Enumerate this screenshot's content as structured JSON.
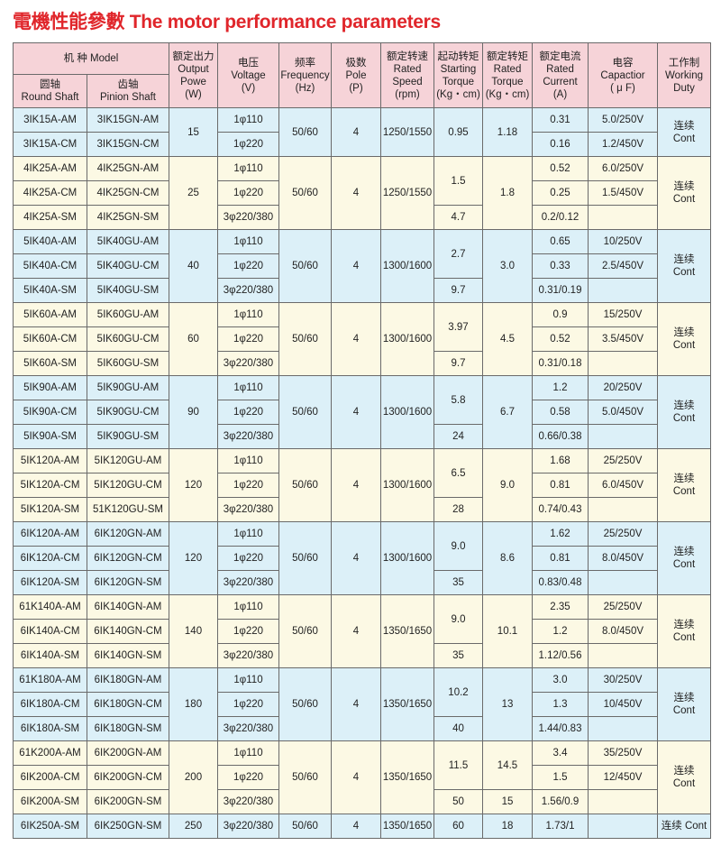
{
  "title": "電機性能參數 The motor performance parameters",
  "header": {
    "model": "机  种 Model",
    "round_shaft": [
      "圆轴",
      "Round Shaft"
    ],
    "pinion_shaft": [
      "齿轴",
      "Pinion Shaft"
    ],
    "output": [
      "额定出力",
      "Output",
      "Powe",
      "(W)"
    ],
    "voltage": [
      "电压",
      "Voltage",
      "(V)"
    ],
    "frequency": [
      "频率",
      "Frequency",
      "(Hz)"
    ],
    "pole": [
      "极数",
      "Pole",
      "(P)"
    ],
    "speed": [
      "额定转速",
      "Rated",
      "Speed",
      "(rpm)"
    ],
    "starting_torque": [
      "起动转矩",
      "Starting",
      "Torque",
      "(Kg・cm)"
    ],
    "rated_torque": [
      "额定转矩",
      "Rated",
      "Torque",
      "(Kg・cm)"
    ],
    "current": [
      "额定电流",
      "Rated",
      "Current",
      "(A)"
    ],
    "capacitor": [
      "电容",
      "Capactior",
      "( μ F)"
    ],
    "duty": [
      "工作制",
      "Working",
      "Duty"
    ]
  },
  "colors": {
    "header": "#f6d3d8",
    "blue": "#dcf0f8",
    "yellow": "#fcf9e4",
    "title": "#e0262b"
  },
  "groups": [
    {
      "bg": "blue",
      "power": "15",
      "freq": "50/60",
      "pole": "4",
      "speed": "1250/1550",
      "duty": [
        "连续",
        "Cont"
      ],
      "rows": [
        {
          "round": "3IK15A-AM",
          "pinion": "3IK15GN-AM",
          "voltage": "1φ110",
          "current": "0.31",
          "capacitor": "5.0/250V"
        },
        {
          "round": "3IK15A-CM",
          "pinion": "3IK15GN-CM",
          "voltage": "1φ220",
          "current": "0.16",
          "capacitor": "1.2/450V"
        }
      ],
      "starting_torque": [
        {
          "value": "0.95",
          "rows": 2
        }
      ],
      "rated_torque": [
        {
          "value": "1.18",
          "rows": 2
        }
      ]
    },
    {
      "bg": "yellow",
      "power": "25",
      "freq": "50/60",
      "pole": "4",
      "speed": "1250/1550",
      "duty": [
        "连续",
        "Cont"
      ],
      "rows": [
        {
          "round": "4IK25A-AM",
          "pinion": "4IK25GN-AM",
          "voltage": "1φ110",
          "current": "0.52",
          "capacitor": "6.0/250V"
        },
        {
          "round": "4IK25A-CM",
          "pinion": "4IK25GN-CM",
          "voltage": "1φ220",
          "current": "0.25",
          "capacitor": "1.5/450V"
        },
        {
          "round": "4IK25A-SM",
          "pinion": "4IK25GN-SM",
          "voltage": "3φ220/380",
          "current": "0.2/0.12",
          "capacitor": ""
        }
      ],
      "starting_torque": [
        {
          "value": "1.5",
          "rows": 2
        },
        {
          "value": "4.7",
          "rows": 1
        }
      ],
      "rated_torque": [
        {
          "value": "1.8",
          "rows": 3
        }
      ]
    },
    {
      "bg": "blue",
      "power": "40",
      "freq": "50/60",
      "pole": "4",
      "speed": "1300/1600",
      "duty": [
        "连续",
        "Cont"
      ],
      "rows": [
        {
          "round": "5IK40A-AM",
          "pinion": "5IK40GU-AM",
          "voltage": "1φ110",
          "current": "0.65",
          "capacitor": "10/250V"
        },
        {
          "round": "5IK40A-CM",
          "pinion": "5IK40GU-CM",
          "voltage": "1φ220",
          "current": "0.33",
          "capacitor": "2.5/450V"
        },
        {
          "round": "5IK40A-SM",
          "pinion": "5IK40GU-SM",
          "voltage": "3φ220/380",
          "current": "0.31/0.19",
          "capacitor": ""
        }
      ],
      "starting_torque": [
        {
          "value": "2.7",
          "rows": 2
        },
        {
          "value": "9.7",
          "rows": 1
        }
      ],
      "rated_torque": [
        {
          "value": "3.0",
          "rows": 3
        }
      ]
    },
    {
      "bg": "yellow",
      "power": "60",
      "freq": "50/60",
      "pole": "4",
      "speed": "1300/1600",
      "duty": [
        "连续",
        "Cont"
      ],
      "rows": [
        {
          "round": "5IK60A-AM",
          "pinion": "5IK60GU-AM",
          "voltage": "1φ110",
          "current": "0.9",
          "capacitor": "15/250V"
        },
        {
          "round": "5IK60A-CM",
          "pinion": "5IK60GU-CM",
          "voltage": "1φ220",
          "current": "0.52",
          "capacitor": "3.5/450V"
        },
        {
          "round": "5IK60A-SM",
          "pinion": "5IK60GU-SM",
          "voltage": "3φ220/380",
          "current": "0.31/0.18",
          "capacitor": ""
        }
      ],
      "starting_torque": [
        {
          "value": "3.97",
          "rows": 2
        },
        {
          "value": "9.7",
          "rows": 1
        }
      ],
      "rated_torque": [
        {
          "value": "4.5",
          "rows": 3
        }
      ]
    },
    {
      "bg": "blue",
      "power": "90",
      "freq": "50/60",
      "pole": "4",
      "speed": "1300/1600",
      "duty": [
        "连续",
        "Cont"
      ],
      "rows": [
        {
          "round": "5IK90A-AM",
          "pinion": "5IK90GU-AM",
          "voltage": "1φ110",
          "current": "1.2",
          "capacitor": "20/250V"
        },
        {
          "round": "5IK90A-CM",
          "pinion": "5IK90GU-CM",
          "voltage": "1φ220",
          "current": "0.58",
          "capacitor": "5.0/450V"
        },
        {
          "round": "5IK90A-SM",
          "pinion": "5IK90GU-SM",
          "voltage": "3φ220/380",
          "current": "0.66/0.38",
          "capacitor": ""
        }
      ],
      "starting_torque": [
        {
          "value": "5.8",
          "rows": 2
        },
        {
          "value": "24",
          "rows": 1
        }
      ],
      "rated_torque": [
        {
          "value": "6.7",
          "rows": 3
        }
      ]
    },
    {
      "bg": "yellow",
      "power": "120",
      "freq": "50/60",
      "pole": "4",
      "speed": "1300/1600",
      "duty": [
        "连续",
        "Cont"
      ],
      "rows": [
        {
          "round": "5IK120A-AM",
          "pinion": "5IK120GU-AM",
          "voltage": "1φ110",
          "current": "1.68",
          "capacitor": "25/250V"
        },
        {
          "round": "5IK120A-CM",
          "pinion": "5IK120GU-CM",
          "voltage": "1φ220",
          "current": "0.81",
          "capacitor": "6.0/450V"
        },
        {
          "round": "5IK120A-SM",
          "pinion": "51K120GU-SM",
          "voltage": "3φ220/380",
          "current": "0.74/0.43",
          "capacitor": ""
        }
      ],
      "starting_torque": [
        {
          "value": "6.5",
          "rows": 2
        },
        {
          "value": "28",
          "rows": 1
        }
      ],
      "rated_torque": [
        {
          "value": "9.0",
          "rows": 3
        }
      ]
    },
    {
      "bg": "blue",
      "power": "120",
      "freq": "50/60",
      "pole": "4",
      "speed": "1300/1600",
      "duty": [
        "连续",
        "Cont"
      ],
      "rows": [
        {
          "round": "6IK120A-AM",
          "pinion": "6IK120GN-AM",
          "voltage": "1φ110",
          "current": "1.62",
          "capacitor": "25/250V"
        },
        {
          "round": "6IK120A-CM",
          "pinion": "6IK120GN-CM",
          "voltage": "1φ220",
          "current": "0.81",
          "capacitor": "8.0/450V"
        },
        {
          "round": "6IK120A-SM",
          "pinion": "6IK120GN-SM",
          "voltage": "3φ220/380",
          "current": "0.83/0.48",
          "capacitor": ""
        }
      ],
      "starting_torque": [
        {
          "value": "9.0",
          "rows": 2
        },
        {
          "value": "35",
          "rows": 1
        }
      ],
      "rated_torque": [
        {
          "value": "8.6",
          "rows": 3
        }
      ]
    },
    {
      "bg": "yellow",
      "power": "140",
      "freq": "50/60",
      "pole": "4",
      "speed": "1350/1650",
      "duty": [
        "连续",
        "Cont"
      ],
      "rows": [
        {
          "round": "61K140A-AM",
          "pinion": "6IK140GN-AM",
          "voltage": "1φ110",
          "current": "2.35",
          "capacitor": "25/250V"
        },
        {
          "round": "6IK140A-CM",
          "pinion": "6IK140GN-CM",
          "voltage": "1φ220",
          "current": "1.2",
          "capacitor": "8.0/450V"
        },
        {
          "round": "6IK140A-SM",
          "pinion": "6IK140GN-SM",
          "voltage": "3φ220/380",
          "current": "1.12/0.56",
          "capacitor": ""
        }
      ],
      "starting_torque": [
        {
          "value": "9.0",
          "rows": 2
        },
        {
          "value": "35",
          "rows": 1
        }
      ],
      "rated_torque": [
        {
          "value": "10.1",
          "rows": 3
        }
      ]
    },
    {
      "bg": "blue",
      "power": "180",
      "freq": "50/60",
      "pole": "4",
      "speed": "1350/1650",
      "duty": [
        "连续",
        "Cont"
      ],
      "rows": [
        {
          "round": "61K180A-AM",
          "pinion": "6IK180GN-AM",
          "voltage": "1φ110",
          "current": "3.0",
          "capacitor": "30/250V"
        },
        {
          "round": "6IK180A-CM",
          "pinion": "6IK180GN-CM",
          "voltage": "1φ220",
          "current": "1.3",
          "capacitor": "10/450V"
        },
        {
          "round": "6IK180A-SM",
          "pinion": "6IK180GN-SM",
          "voltage": "3φ220/380",
          "current": "1.44/0.83",
          "capacitor": ""
        }
      ],
      "starting_torque": [
        {
          "value": "10.2",
          "rows": 2
        },
        {
          "value": "40",
          "rows": 1
        }
      ],
      "rated_torque": [
        {
          "value": "13",
          "rows": 3
        }
      ]
    },
    {
      "bg": "yellow",
      "power": "200",
      "freq": "50/60",
      "pole": "4",
      "speed": "1350/1650",
      "duty": [
        "连续",
        "Cont"
      ],
      "rows": [
        {
          "round": "61K200A-AM",
          "pinion": "6IK200GN-AM",
          "voltage": "1φ110",
          "current": "3.4",
          "capacitor": "35/250V"
        },
        {
          "round": "6IK200A-CM",
          "pinion": "6IK200GN-CM",
          "voltage": "1φ220",
          "current": "1.5",
          "capacitor": "12/450V"
        },
        {
          "round": "6IK200A-SM",
          "pinion": "6IK200GN-SM",
          "voltage": "3φ220/380",
          "current": "1.56/0.9",
          "capacitor": ""
        }
      ],
      "starting_torque": [
        {
          "value": "11.5",
          "rows": 2
        },
        {
          "value": "50",
          "rows": 1
        }
      ],
      "rated_torque": [
        {
          "value": "14.5",
          "rows": 2
        },
        {
          "value": "15",
          "rows": 1
        }
      ]
    },
    {
      "bg": "blue",
      "power": "250",
      "freq": "50/60",
      "pole": "4",
      "speed": "1350/1650",
      "duty": [
        "连续",
        "Cont"
      ],
      "rows": [
        {
          "round": "6IK250A-SM",
          "pinion": "6IK250GN-SM",
          "voltage": "3φ220/380",
          "current": "1.73/1",
          "capacitor": ""
        }
      ],
      "starting_torque": [
        {
          "value": "60",
          "rows": 1
        }
      ],
      "rated_torque": [
        {
          "value": "18",
          "rows": 1
        }
      ]
    }
  ]
}
